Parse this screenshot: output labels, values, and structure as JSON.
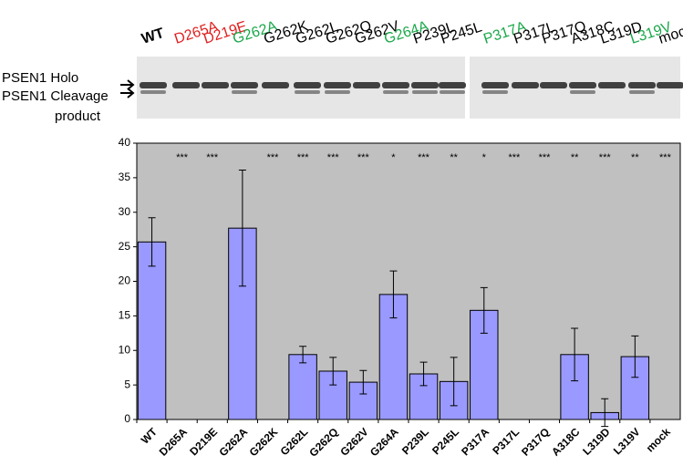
{
  "chart_data": {
    "type": "bar",
    "blot": {
      "holo_label": "PSEN1 Holo",
      "cleavage_label": "PSEN1 Cleavage",
      "cleavage_label_2": "product",
      "lanes": [
        {
          "label": "WT",
          "color": "#000000"
        },
        {
          "label": "D265A",
          "color": "#e02020"
        },
        {
          "label": "D219E",
          "color": "#e02020"
        },
        {
          "label": "G262A",
          "color": "#1aa84a"
        },
        {
          "label": "G262K",
          "color": "#000000"
        },
        {
          "label": "G262L",
          "color": "#000000"
        },
        {
          "label": "G262Q",
          "color": "#000000"
        },
        {
          "label": "G262V",
          "color": "#000000"
        },
        {
          "label": "G264A",
          "color": "#1aa84a"
        },
        {
          "label": "P239L",
          "color": "#000000"
        },
        {
          "label": "P245L",
          "color": "#000000"
        },
        {
          "label": "P317A",
          "color": "#1aa84a"
        },
        {
          "label": "P317L",
          "color": "#000000"
        },
        {
          "label": "P317Q",
          "color": "#000000"
        },
        {
          "label": "A318C",
          "color": "#000000"
        },
        {
          "label": "L319D",
          "color": "#000000"
        },
        {
          "label": "L319V",
          "color": "#1aa84a"
        },
        {
          "label": "mock",
          "color": "#000000"
        }
      ]
    },
    "categories": [
      "WT",
      "D265A",
      "D219E",
      "G262A",
      "G262K",
      "G262L",
      "G262Q",
      "G262V",
      "G264A",
      "P239L",
      "P245L",
      "P317A",
      "P317L",
      "P317Q",
      "A318C",
      "L319D",
      "L319V",
      "mock"
    ],
    "values": [
      25.7,
      0,
      0,
      27.7,
      0,
      9.4,
      7.0,
      5.4,
      18.1,
      6.6,
      5.5,
      15.8,
      0,
      0,
      9.4,
      1.0,
      9.1,
      0
    ],
    "errors": [
      3.5,
      0,
      0,
      8.4,
      0,
      1.2,
      2.0,
      1.7,
      3.4,
      1.7,
      3.5,
      3.3,
      0,
      0,
      3.8,
      2.0,
      3.0,
      0
    ],
    "annotations": [
      null,
      "***",
      "***",
      null,
      "***",
      "***",
      "***",
      "***",
      "*",
      "***",
      "**",
      "*",
      "***",
      "***",
      "**",
      "***",
      "**",
      "***"
    ],
    "color": "#9999ff",
    "ylim": [
      0,
      40
    ],
    "yticks": [
      0,
      5,
      10,
      15,
      20,
      25,
      30,
      35,
      40
    ],
    "grid": false
  }
}
